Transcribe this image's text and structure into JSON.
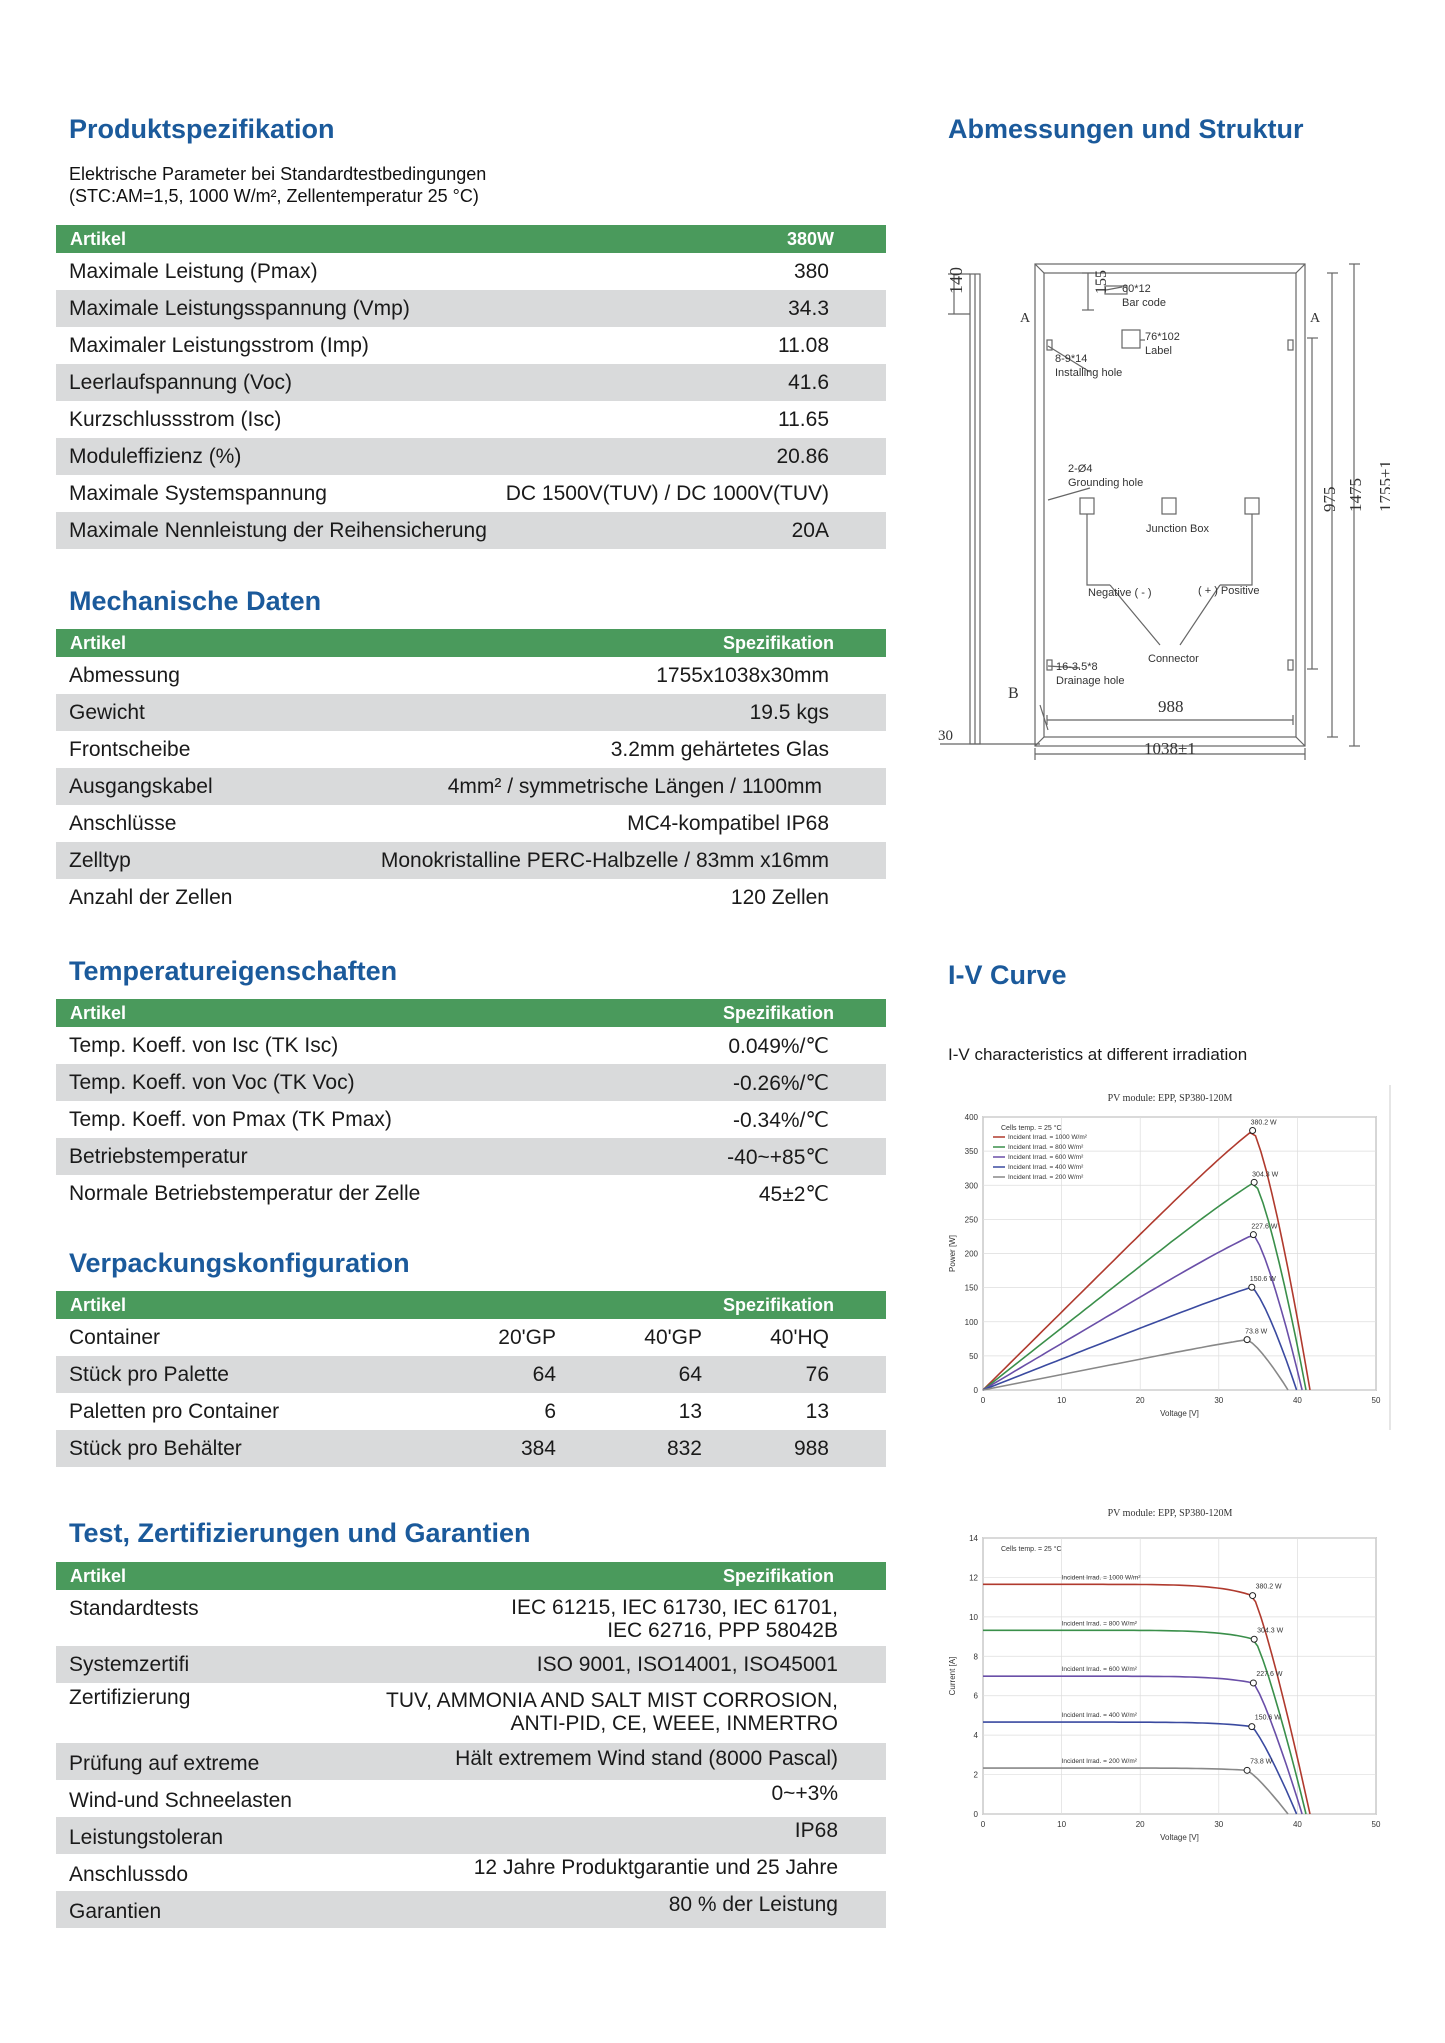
{
  "spec": {
    "title": "Produktspezifikation",
    "subtitle_line1": "Elektrische Parameter bei Standardtestbedingungen",
    "subtitle_line2": "(STC:AM=1,5, 1000 W/m², Zellentemperatur 25 °C)",
    "head_left": "Artikel",
    "head_right": "380W",
    "rows": [
      {
        "label": "Maximale Leistung (Pmax)",
        "value": "380"
      },
      {
        "label": "Maximale Leistungsspannung (Vmp)",
        "value": "34.3"
      },
      {
        "label": "Maximaler Leistungsstrom (Imp)",
        "value": "11.08"
      },
      {
        "label": "Leerlaufspannung (Voc)",
        "value": "41.6"
      },
      {
        "label": "Kurzschlussstrom (Isc)",
        "value": "11.65"
      },
      {
        "label": "Moduleffizienz (%)",
        "value": "20.86"
      },
      {
        "label": "Maximale Systemspannung",
        "value": "DC 1500V(TUV) / DC 1000V(TUV)"
      },
      {
        "label": "Maximale Nennleistung der Reihensicherung",
        "value": "20A"
      }
    ]
  },
  "mech": {
    "title": "Mechanische Daten",
    "head_left": "Artikel",
    "head_right": "Spezifikation",
    "rows": [
      {
        "label": "Abmessung",
        "value": "1755x1038x30mm"
      },
      {
        "label": "Gewicht",
        "value": "19.5 kgs"
      },
      {
        "label": "Frontscheibe",
        "value": "3.2mm gehärtetes Glas"
      },
      {
        "label": "Ausgangskabel",
        "value": "4mm² / symmetrische Längen / 1100mm"
      },
      {
        "label": "Anschlüsse",
        "value": "MC4-kompatibel IP68"
      },
      {
        "label": "Zelltyp",
        "value": "Monokristalline PERC-Halbzelle / 83mm x16mm"
      },
      {
        "label": "Anzahl der Zellen",
        "value": "120 Zellen"
      }
    ]
  },
  "temp": {
    "title": "Temperatureigenschaften",
    "head_left": "Artikel",
    "head_right": "Spezifikation",
    "rows": [
      {
        "label": "Temp. Koeff. von Isc (TK Isc)",
        "value": "0.049%/℃"
      },
      {
        "label": "Temp. Koeff. von Voc (TK Voc)",
        "value": "-0.26%/℃"
      },
      {
        "label": "Temp. Koeff. von Pmax (TK Pmax)",
        "value": "-0.34%/℃"
      },
      {
        "label": "Betriebstemperatur",
        "value": "-40~+85℃"
      },
      {
        "label": "Normale Betriebstemperatur der Zelle",
        "value": "45±2℃"
      }
    ]
  },
  "pack": {
    "title": "Verpackungskonfiguration",
    "head_left": "Artikel",
    "head_right": "Spezifikation",
    "rows": [
      {
        "label": "Container",
        "a": "20'GP",
        "b": "40'GP",
        "c": "40'HQ"
      },
      {
        "label": "Stück pro Palette",
        "a": "64",
        "b": "64",
        "c": "76"
      },
      {
        "label": "Paletten pro Container",
        "a": "6",
        "b": "13",
        "c": "13"
      },
      {
        "label": "Stück pro Behälter",
        "a": "384",
        "b": "832",
        "c": "988"
      }
    ]
  },
  "cert": {
    "title": "Test, Zertifizierungen und Garantien",
    "head_left": "Artikel",
    "head_right": "Spezifikation",
    "rows": [
      {
        "label": "Standardtests",
        "value1": "IEC 61215, IEC 61730, IEC 61701,",
        "value2": "IEC 62716, PPP 58042B"
      },
      {
        "label": "Systemzertifi",
        "value1": "ISO 9001, ISO14001, ISO45001"
      },
      {
        "label": "Zertifizierung",
        "value1": "TUV, AMMONIA AND SALT MIST CORROSION,",
        "value2": "ANTI-PID, CE, WEEE, INMERTRO"
      },
      {
        "label": "Prüfung auf extreme",
        "value1": "Hält extremem Wind stand (8000 Pascal)"
      },
      {
        "label": "Wind-und Schneelasten",
        "value1": "0~+3%"
      },
      {
        "label": "Leistungstoleran",
        "value1": "IP68"
      },
      {
        "label": "Anschlussdo",
        "value1": "12 Jahre Produktgarantie und 25 Jahre"
      },
      {
        "label": "Garantien",
        "value1": "80 % der Leistung"
      }
    ]
  },
  "dims": {
    "title": "Abmessungen und Struktur",
    "labels": {
      "d140": "140",
      "d155": "155",
      "barcode_size": "60*12",
      "barcode": "Bar code",
      "label_size": "76*102",
      "label": "Label",
      "install_size": "8-9*14",
      "install": "Installing hole",
      "ground_size": "2-Ø4",
      "ground": "Grounding hole",
      "jbox": "Junction Box",
      "negative": "Negative ( - )",
      "positive": "( + ) Positive",
      "connector": "Connector",
      "drain_size": "16-3.5*8",
      "drain": "Drainage hole",
      "d988": "988",
      "d1038": "1038±1",
      "d975": "975",
      "d1475": "1475",
      "d1755": "1755±1",
      "d30": "30",
      "secA": "A",
      "secB": "B"
    }
  },
  "iv": {
    "title": "I-V Curve",
    "subtitle": "I-V characteristics at different irradiation",
    "module": "PV module: EPP, SP380-120M"
  },
  "chart_data": [
    {
      "type": "line",
      "title": "PV module: EPP, SP380-120M",
      "xlabel": "Voltage [V]",
      "ylabel": "Power [W]",
      "xlim": [
        0,
        50
      ],
      "ylim": [
        0,
        400
      ],
      "x_ticks": [
        "0",
        "10",
        "20",
        "30",
        "40",
        "50"
      ],
      "y_ticks": [
        "0",
        "50",
        "100",
        "150",
        "200",
        "250",
        "300",
        "350",
        "400"
      ],
      "annotation": "Cells temp. = 25 °C",
      "series": [
        {
          "name": "Incident Irrad. = 1000 W/m²",
          "color": "#b03a2e",
          "vmp": 34.3,
          "pmax": 380.2,
          "voc": 41.6,
          "label": "380.2 W"
        },
        {
          "name": "Incident Irrad. = 800 W/m²",
          "color": "#3a8f4a",
          "vmp": 34.5,
          "pmax": 304.3,
          "voc": 41.1,
          "label": "304.3 W"
        },
        {
          "name": "Incident Irrad. = 600 W/m²",
          "color": "#6a4fa8",
          "vmp": 34.4,
          "pmax": 227.6,
          "voc": 40.6,
          "label": "227.6 W"
        },
        {
          "name": "Incident Irrad. = 400 W/m²",
          "color": "#3a4aa0",
          "vmp": 34.2,
          "pmax": 150.6,
          "voc": 39.9,
          "label": "150.6 W"
        },
        {
          "name": "Incident Irrad. = 200 W/m²",
          "color": "#888888",
          "vmp": 33.6,
          "pmax": 73.8,
          "voc": 38.8,
          "label": "73.8 W"
        }
      ]
    },
    {
      "type": "line",
      "title": "PV module: EPP, SP380-120M",
      "xlabel": "Voltage [V]",
      "ylabel": "Current [A]",
      "xlim": [
        0,
        50
      ],
      "ylim": [
        0,
        14
      ],
      "x_ticks": [
        "0",
        "10",
        "20",
        "30",
        "40",
        "50"
      ],
      "y_ticks": [
        "0",
        "2",
        "4",
        "6",
        "8",
        "10",
        "12",
        "14"
      ],
      "annotation": "Cells temp. = 25 °C",
      "series": [
        {
          "name": "Incident Irrad. = 1000 W/m²",
          "color": "#b03a2e",
          "isc": 11.65,
          "vmp": 34.3,
          "voc": 41.6,
          "label": "380.2 W"
        },
        {
          "name": "Incident Irrad. = 800 W/m²",
          "color": "#3a8f4a",
          "isc": 9.32,
          "vmp": 34.5,
          "voc": 41.1,
          "label": "304.3 W"
        },
        {
          "name": "Incident Irrad. = 600 W/m²",
          "color": "#6a4fa8",
          "isc": 6.99,
          "vmp": 34.4,
          "voc": 40.6,
          "label": "227.6 W"
        },
        {
          "name": "Incident Irrad. = 400 W/m²",
          "color": "#3a4aa0",
          "isc": 4.66,
          "vmp": 34.2,
          "voc": 39.9,
          "label": "150.6 W"
        },
        {
          "name": "Incident Irrad. = 200 W/m²",
          "color": "#888888",
          "isc": 2.33,
          "vmp": 33.6,
          "voc": 38.8,
          "label": "73.8 W"
        }
      ]
    }
  ]
}
